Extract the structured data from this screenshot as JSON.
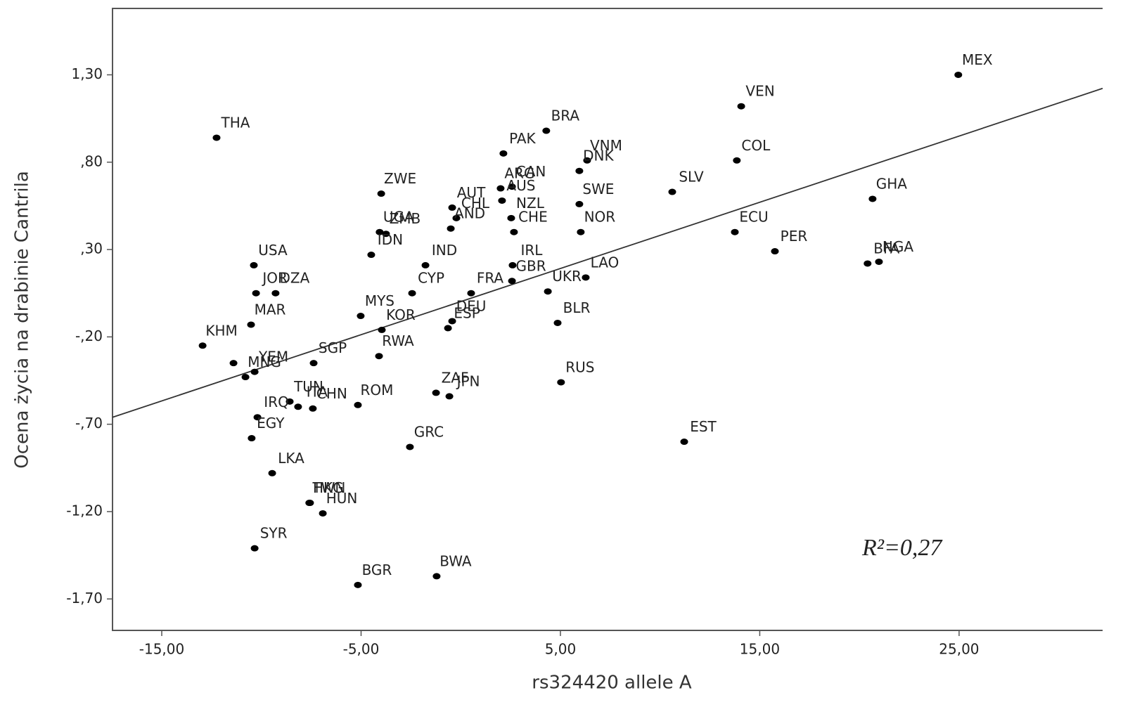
{
  "chart_data": {
    "type": "scatter",
    "x_label": "rs324420 allele A",
    "y_label": "Ocena życia na drabinie Cantrila",
    "annotation": "R²=0,27",
    "color": "#000000",
    "line_color": "#333333",
    "point_labels": [
      "MEX",
      "VEN",
      "BRA",
      "THA",
      "PAK",
      "COL",
      "VNM",
      "DNK",
      "CAN",
      "ARG",
      "SLV",
      "ZWE",
      "GHA",
      "AUT",
      "AUS",
      "NZL",
      "CHL",
      "AND",
      "CHE",
      "SWE",
      "NOR",
      "UGA",
      "ZMB",
      "IDN",
      "USA",
      "IND",
      "IRL",
      "GBR",
      "LAO",
      "NGA",
      "BFA",
      "ECU",
      "PER",
      "JOR",
      "DZA",
      "CYP",
      "FRA",
      "UKR",
      "BLR",
      "MYS",
      "MAR",
      "KOR",
      "ESP",
      "DEU",
      "KHM",
      "SGP",
      "RWA",
      "YEM",
      "MNG",
      null,
      "TUN",
      "ITA",
      "CHN",
      "IRQ",
      "EGY",
      "ROM",
      "GRC",
      "ZAF",
      "JPN",
      "RUS",
      "EST",
      "LKA",
      "TWN",
      "HKG",
      "HUN",
      "SYR",
      "BGR",
      "BWA"
    ],
    "x": [
      24.96,
      14.07,
      4.29,
      -12.25,
      2.14,
      13.85,
      6.34,
      5.95,
      2.57,
      2.0,
      10.61,
      -3.99,
      20.66,
      -0.43,
      2.07,
      2.53,
      -0.22,
      -0.5,
      2.67,
      5.95,
      6.02,
      -4.07,
      -3.75,
      -4.49,
      -10.38,
      -1.77,
      2.6,
      2.57,
      6.27,
      20.98,
      20.41,
      13.75,
      15.76,
      -10.27,
      -9.29,
      -2.44,
      0.52,
      4.37,
      4.86,
      -5.02,
      -10.52,
      -3.96,
      -0.64,
      -0.43,
      -12.95,
      -7.38,
      -4.1,
      -10.34,
      -10.8,
      -11.4,
      -8.58,
      -8.16,
      -7.42,
      -10.2,
      -10.49,
      -5.16,
      -2.55,
      -1.24,
      -0.57,
      5.03,
      11.21,
      -9.46,
      -7.56,
      -7.6,
      -6.92,
      -10.34,
      -5.16,
      -1.21
    ],
    "values": [
      1.3,
      1.12,
      0.98,
      0.94,
      0.85,
      0.81,
      0.81,
      0.75,
      0.66,
      0.65,
      0.63,
      0.62,
      0.59,
      0.54,
      0.58,
      0.48,
      0.48,
      0.42,
      0.4,
      0.56,
      0.4,
      0.4,
      0.39,
      0.27,
      0.21,
      0.21,
      0.21,
      0.12,
      0.14,
      0.23,
      0.22,
      0.4,
      0.29,
      0.05,
      0.05,
      0.05,
      0.05,
      0.06,
      -0.12,
      -0.08,
      -0.13,
      -0.16,
      -0.15,
      -0.11,
      -0.25,
      -0.35,
      -0.31,
      -0.4,
      -0.43,
      -0.35,
      -0.57,
      -0.6,
      -0.61,
      -0.66,
      -0.78,
      -0.59,
      -0.83,
      -0.52,
      -0.54,
      -0.46,
      -0.8,
      -0.98,
      -1.15,
      -1.15,
      -1.21,
      -1.41,
      -1.62,
      -1.57
    ],
    "trend": {
      "slope": 0.0379,
      "intercept": 0.002
    },
    "xlim": [
      -17.47,
      32.2
    ],
    "ylim": [
      -1.88,
      1.68
    ],
    "xticks": [
      {
        "value": -15,
        "label": "-15,00"
      },
      {
        "value": -5,
        "label": "-5,00"
      },
      {
        "value": 5,
        "label": "5,00"
      },
      {
        "value": 15,
        "label": "15,00"
      },
      {
        "value": 25,
        "label": "25,00"
      }
    ],
    "yticks": [
      {
        "value": 1.3,
        "label": "1,30"
      },
      {
        "value": 0.8,
        "label": ",80"
      },
      {
        "value": 0.3,
        "label": ",30"
      },
      {
        "value": -0.2,
        "label": "-,20"
      },
      {
        "value": -0.7,
        "label": "-,70"
      },
      {
        "value": -1.2,
        "label": "-1,20"
      },
      {
        "value": -1.7,
        "label": "-1,70"
      }
    ]
  }
}
